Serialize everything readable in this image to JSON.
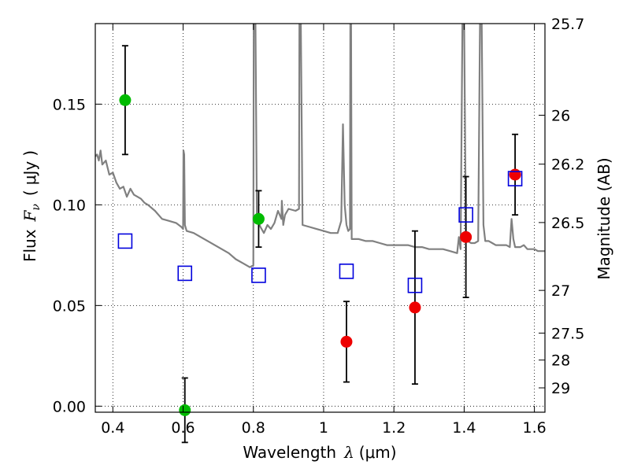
{
  "chart_data": {
    "type": "scatter",
    "title": "",
    "xlabel": {
      "prefix": "Wavelength",
      "symbol": "λ",
      "unit_open": "(",
      "unit": "μm",
      "unit_close": ")"
    },
    "ylabel": {
      "prefix": "Flux",
      "symbol": "F",
      "subscript": "ν",
      "unit_open": "(",
      "unit": "μJy",
      "unit_close": ")"
    },
    "y2label": "Magnitude (AB)",
    "xlim": [
      0.35,
      1.63
    ],
    "ylim": [
      -0.003,
      0.19
    ],
    "grid": true,
    "x_ticks": [
      0.4,
      0.6,
      0.8,
      1.0,
      1.2,
      1.4,
      1.6
    ],
    "x_tick_labels": [
      "0.4",
      "0.6",
      "0.8",
      "1",
      "1.2",
      "1.4",
      "1.6"
    ],
    "y_ticks": [
      0.0,
      0.05,
      0.1,
      0.15
    ],
    "y_tick_labels": [
      "0.00",
      "0.05",
      "0.10",
      "0.15"
    ],
    "y2_ticks": [
      {
        "label": "25.7",
        "flux": 0.19
      },
      {
        "label": "26",
        "flux": 0.1445
      },
      {
        "label": "26.2",
        "flux": 0.1202
      },
      {
        "label": "26.5",
        "flux": 0.0912
      },
      {
        "label": "27",
        "flux": 0.0575
      },
      {
        "label": "27.5",
        "flux": 0.0363
      },
      {
        "label": "28",
        "flux": 0.0229
      },
      {
        "label": "29",
        "flux": 0.0091
      }
    ],
    "colors": {
      "green": "#00bb00",
      "red": "#ee0000",
      "model_box": "#0000dd",
      "spectrum": "#808080",
      "grid": "#000000"
    },
    "series": [
      {
        "marker": "circle",
        "color": "green",
        "points": [
          {
            "x": 0.435,
            "y": 0.152,
            "err": 0.027
          },
          {
            "x": 0.605,
            "y": -0.002,
            "err": 0.016
          },
          {
            "x": 0.815,
            "y": 0.093,
            "err": 0.014
          }
        ]
      },
      {
        "marker": "circle",
        "color": "red",
        "points": [
          {
            "x": 1.065,
            "y": 0.032,
            "err": 0.02
          },
          {
            "x": 1.26,
            "y": 0.049,
            "err": 0.038
          },
          {
            "x": 1.405,
            "y": 0.084,
            "err": 0.03
          },
          {
            "x": 1.545,
            "y": 0.115,
            "err": 0.02
          }
        ]
      },
      {
        "marker": "square",
        "color": "model_box",
        "points": [
          {
            "x": 0.435,
            "y": 0.082
          },
          {
            "x": 0.605,
            "y": 0.066
          },
          {
            "x": 0.815,
            "y": 0.065
          },
          {
            "x": 1.065,
            "y": 0.067
          },
          {
            "x": 1.26,
            "y": 0.06
          },
          {
            "x": 1.405,
            "y": 0.095
          },
          {
            "x": 1.545,
            "y": 0.113
          }
        ]
      },
      {
        "type": "line",
        "color": "spectrum",
        "points": [
          [
            0.35,
            0.124
          ],
          [
            0.355,
            0.125
          ],
          [
            0.36,
            0.122
          ],
          [
            0.365,
            0.127
          ],
          [
            0.37,
            0.12
          ],
          [
            0.38,
            0.122
          ],
          [
            0.39,
            0.115
          ],
          [
            0.4,
            0.116
          ],
          [
            0.41,
            0.111
          ],
          [
            0.42,
            0.108
          ],
          [
            0.43,
            0.109
          ],
          [
            0.44,
            0.104
          ],
          [
            0.45,
            0.108
          ],
          [
            0.46,
            0.105
          ],
          [
            0.47,
            0.104
          ],
          [
            0.48,
            0.103
          ],
          [
            0.49,
            0.101
          ],
          [
            0.5,
            0.1
          ],
          [
            0.52,
            0.097
          ],
          [
            0.54,
            0.093
          ],
          [
            0.56,
            0.092
          ],
          [
            0.58,
            0.091
          ],
          [
            0.595,
            0.089
          ],
          [
            0.6,
            0.088
          ],
          [
            0.601,
            0.127
          ],
          [
            0.603,
            0.125
          ],
          [
            0.605,
            0.09
          ],
          [
            0.61,
            0.087
          ],
          [
            0.63,
            0.086
          ],
          [
            0.65,
            0.084
          ],
          [
            0.67,
            0.082
          ],
          [
            0.69,
            0.08
          ],
          [
            0.71,
            0.078
          ],
          [
            0.73,
            0.076
          ],
          [
            0.75,
            0.073
          ],
          [
            0.77,
            0.071
          ],
          [
            0.79,
            0.069
          ],
          [
            0.8,
            0.07
          ],
          [
            0.801,
            0.19
          ],
          [
            0.806,
            0.19
          ],
          [
            0.81,
            0.094
          ],
          [
            0.82,
            0.089
          ],
          [
            0.83,
            0.086
          ],
          [
            0.84,
            0.09
          ],
          [
            0.85,
            0.088
          ],
          [
            0.86,
            0.091
          ],
          [
            0.87,
            0.097
          ],
          [
            0.88,
            0.093
          ],
          [
            0.881,
            0.102
          ],
          [
            0.885,
            0.09
          ],
          [
            0.89,
            0.095
          ],
          [
            0.9,
            0.098
          ],
          [
            0.92,
            0.097
          ],
          [
            0.93,
            0.098
          ],
          [
            0.931,
            0.19
          ],
          [
            0.935,
            0.19
          ],
          [
            0.94,
            0.09
          ],
          [
            0.96,
            0.089
          ],
          [
            0.98,
            0.088
          ],
          [
            1.0,
            0.087
          ],
          [
            1.02,
            0.086
          ],
          [
            1.04,
            0.086
          ],
          [
            1.05,
            0.092
          ],
          [
            1.055,
            0.14
          ],
          [
            1.06,
            0.1
          ],
          [
            1.065,
            0.09
          ],
          [
            1.07,
            0.087
          ],
          [
            1.075,
            0.088
          ],
          [
            1.076,
            0.19
          ],
          [
            1.078,
            0.19
          ],
          [
            1.08,
            0.083
          ],
          [
            1.1,
            0.083
          ],
          [
            1.12,
            0.082
          ],
          [
            1.14,
            0.082
          ],
          [
            1.16,
            0.081
          ],
          [
            1.18,
            0.08
          ],
          [
            1.2,
            0.08
          ],
          [
            1.22,
            0.08
          ],
          [
            1.24,
            0.08
          ],
          [
            1.26,
            0.079
          ],
          [
            1.28,
            0.079
          ],
          [
            1.3,
            0.078
          ],
          [
            1.32,
            0.078
          ],
          [
            1.34,
            0.078
          ],
          [
            1.36,
            0.077
          ],
          [
            1.38,
            0.076
          ],
          [
            1.385,
            0.084
          ],
          [
            1.39,
            0.078
          ],
          [
            1.395,
            0.19
          ],
          [
            1.4,
            0.19
          ],
          [
            1.405,
            0.086
          ],
          [
            1.41,
            0.082
          ],
          [
            1.42,
            0.081
          ],
          [
            1.43,
            0.081
          ],
          [
            1.44,
            0.082
          ],
          [
            1.445,
            0.19
          ],
          [
            1.45,
            0.19
          ],
          [
            1.455,
            0.09
          ],
          [
            1.46,
            0.082
          ],
          [
            1.47,
            0.082
          ],
          [
            1.48,
            0.081
          ],
          [
            1.49,
            0.08
          ],
          [
            1.5,
            0.08
          ],
          [
            1.51,
            0.08
          ],
          [
            1.52,
            0.08
          ],
          [
            1.53,
            0.079
          ],
          [
            1.535,
            0.093
          ],
          [
            1.54,
            0.083
          ],
          [
            1.545,
            0.079
          ],
          [
            1.55,
            0.079
          ],
          [
            1.56,
            0.079
          ],
          [
            1.57,
            0.08
          ],
          [
            1.58,
            0.078
          ],
          [
            1.59,
            0.078
          ],
          [
            1.6,
            0.078
          ],
          [
            1.61,
            0.077
          ],
          [
            1.62,
            0.077
          ],
          [
            1.63,
            0.077
          ]
        ]
      }
    ]
  }
}
